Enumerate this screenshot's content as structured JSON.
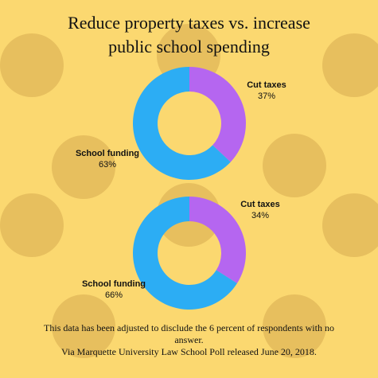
{
  "title_lines": [
    "Reduce property taxes vs. increase",
    "public school spending"
  ],
  "colors": {
    "background": "#FBD870",
    "dots": "#E7BF5E",
    "cut_taxes": "#B566F0",
    "school_funding": "#2CADF4"
  },
  "chart_data": [
    {
      "type": "pie",
      "style": "donut",
      "categories": [
        "Cut taxes",
        "School funding"
      ],
      "values": [
        37,
        63
      ],
      "value_labels": [
        "37%",
        "63%"
      ],
      "colors": [
        "#B566F0",
        "#2CADF4"
      ]
    },
    {
      "type": "pie",
      "style": "donut",
      "categories": [
        "Cut taxes",
        "School funding"
      ],
      "values": [
        34,
        66
      ],
      "value_labels": [
        "34%",
        "66%"
      ],
      "colors": [
        "#B566F0",
        "#2CADF4"
      ]
    }
  ],
  "footer_lines": [
    "This data has been adjusted to disclude the 6 percent of respondents with no",
    "answer.",
    "Via Marquette University Law School Poll released June 20, 2018."
  ]
}
